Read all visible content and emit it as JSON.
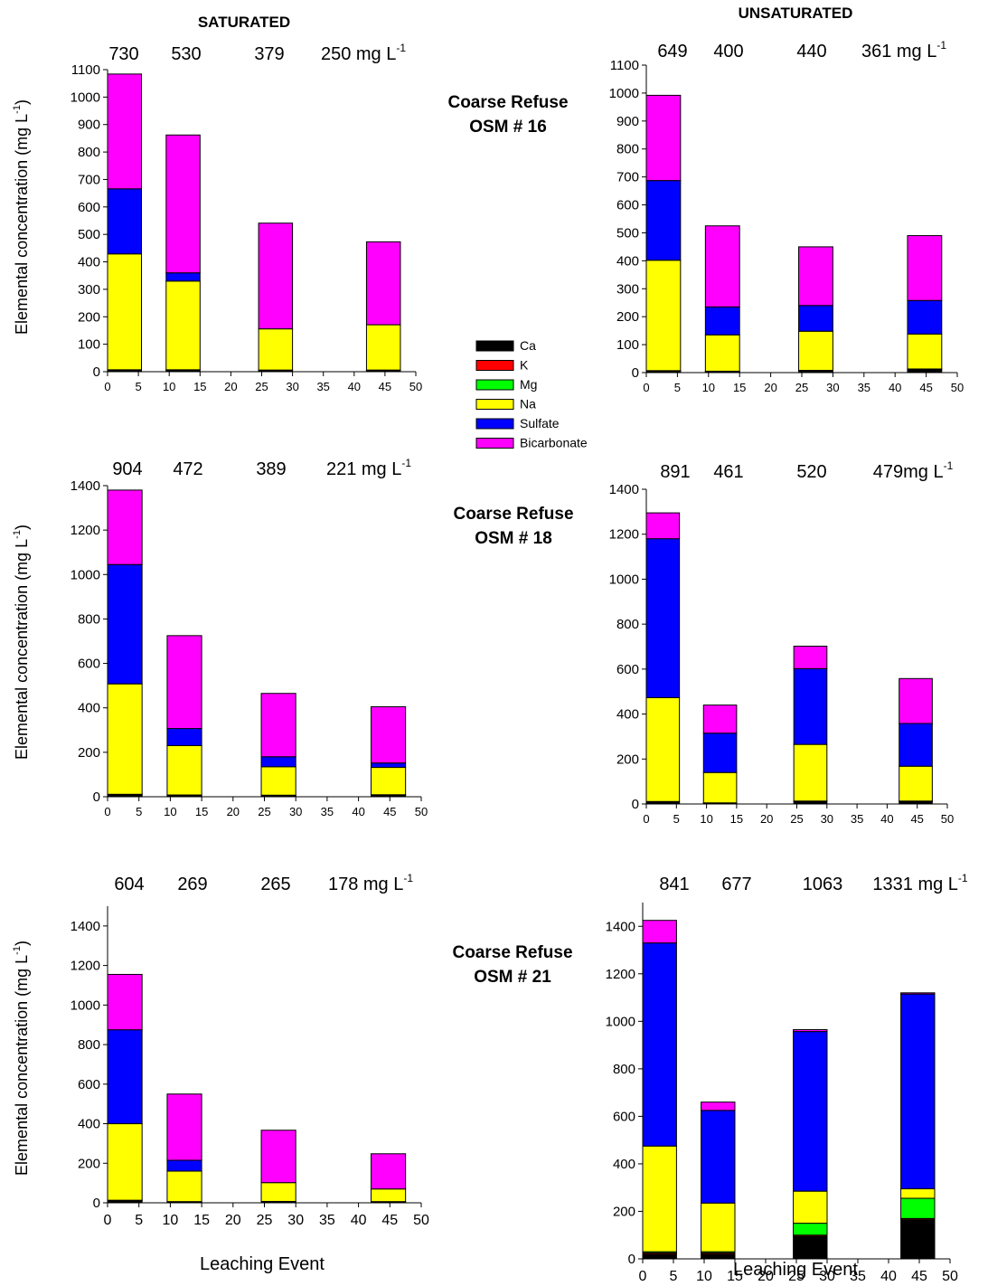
{
  "headers": {
    "saturated": "SATURATED",
    "unsaturated": "UNSATURATED"
  },
  "xlabel": "Leaching Event",
  "ylabel": "Elemental concentration (mg L",
  "ylabel_sup": "-1",
  "ylabel_close": ")",
  "row_labels": [
    {
      "line1": "Coarse Refuse",
      "line2": "OSM # 16"
    },
    {
      "line1": "Coarse Refuse",
      "line2": "OSM # 18"
    },
    {
      "line1": "Coarse Refuse",
      "line2": "OSM # 21"
    }
  ],
  "legend": [
    {
      "key": "Ca",
      "label": "Ca",
      "color": "#000000"
    },
    {
      "key": "K",
      "label": "K",
      "color": "#ff0000"
    },
    {
      "key": "Mg",
      "label": "Mg",
      "color": "#00ff00"
    },
    {
      "key": "Na",
      "label": "Na",
      "color": "#ffff00"
    },
    {
      "key": "Sulfate",
      "label": "Sulfate",
      "color": "#0000ff"
    },
    {
      "key": "Bicarbonate",
      "label": "Bicarbonate",
      "color": "#ff00ff"
    }
  ],
  "chart_data": [
    {
      "type": "bar",
      "stacked": true,
      "panel": "OSM # 16 saturated",
      "ylim": [
        0,
        1100
      ],
      "yticks": [
        0,
        100,
        200,
        300,
        400,
        500,
        600,
        700,
        800,
        900,
        1000,
        1100
      ],
      "xlim": [
        0,
        50
      ],
      "xticks": [
        0,
        5,
        10,
        15,
        20,
        25,
        30,
        35,
        40,
        45,
        50
      ],
      "top_labels": [
        "730",
        "530",
        "379",
        "250 mg L"
      ],
      "top_label_sup": "-1",
      "bars": [
        {
          "x": [
            0,
            5.5
          ],
          "Ca": 5,
          "K": 2,
          "Mg": 0,
          "Na": 422,
          "Sulfate": 237,
          "Bicarbonate": 418
        },
        {
          "x": [
            9.5,
            15
          ],
          "Ca": 5,
          "K": 2,
          "Mg": 0,
          "Na": 323,
          "Sulfate": 30,
          "Bicarbonate": 502
        },
        {
          "x": [
            24.5,
            30
          ],
          "Ca": 4,
          "K": 2,
          "Mg": 0,
          "Na": 150,
          "Sulfate": 0,
          "Bicarbonate": 385
        },
        {
          "x": [
            42,
            47.5
          ],
          "Ca": 4,
          "K": 2,
          "Mg": 0,
          "Na": 165,
          "Sulfate": 0,
          "Bicarbonate": 302
        }
      ]
    },
    {
      "type": "bar",
      "stacked": true,
      "panel": "OSM # 16 unsaturated",
      "ylim": [
        0,
        1100
      ],
      "yticks": [
        0,
        100,
        200,
        300,
        400,
        500,
        600,
        700,
        800,
        900,
        1000,
        1100
      ],
      "xlim": [
        0,
        50
      ],
      "xticks": [
        0,
        5,
        10,
        15,
        20,
        25,
        30,
        35,
        40,
        45,
        50
      ],
      "top_labels": [
        "649",
        "400",
        "440",
        "361 mg L"
      ],
      "top_label_sup": "-1",
      "bars": [
        {
          "x": [
            0,
            5.5
          ],
          "Ca": 5,
          "K": 2,
          "Mg": 0,
          "Na": 395,
          "Sulfate": 285,
          "Bicarbonate": 305
        },
        {
          "x": [
            9.5,
            15
          ],
          "Ca": 3,
          "K": 2,
          "Mg": 0,
          "Na": 130,
          "Sulfate": 100,
          "Bicarbonate": 290
        },
        {
          "x": [
            24.5,
            30
          ],
          "Ca": 6,
          "K": 2,
          "Mg": 0,
          "Na": 140,
          "Sulfate": 92,
          "Bicarbonate": 210
        },
        {
          "x": [
            42,
            47.5
          ],
          "Ca": 10,
          "K": 3,
          "Mg": 0,
          "Na": 125,
          "Sulfate": 120,
          "Bicarbonate": 232
        }
      ]
    },
    {
      "type": "bar",
      "stacked": true,
      "panel": "OSM # 18 saturated",
      "ylim": [
        0,
        1400
      ],
      "yticks": [
        0,
        200,
        400,
        600,
        800,
        1000,
        1200,
        1400
      ],
      "xlim": [
        0,
        50
      ],
      "xticks": [
        0,
        5,
        10,
        15,
        20,
        25,
        30,
        35,
        40,
        45,
        50
      ],
      "top_labels": [
        "904",
        "472",
        "389",
        "221 mg L"
      ],
      "top_label_sup": "-1",
      "bars": [
        {
          "x": [
            0,
            5.5
          ],
          "Ca": 8,
          "K": 3,
          "Mg": 0,
          "Na": 497,
          "Sulfate": 537,
          "Bicarbonate": 335
        },
        {
          "x": [
            9.5,
            15
          ],
          "Ca": 6,
          "K": 2,
          "Mg": 0,
          "Na": 222,
          "Sulfate": 77,
          "Bicarbonate": 418
        },
        {
          "x": [
            24.5,
            30
          ],
          "Ca": 5,
          "K": 2,
          "Mg": 0,
          "Na": 128,
          "Sulfate": 45,
          "Bicarbonate": 285
        },
        {
          "x": [
            42,
            47.5
          ],
          "Ca": 6,
          "K": 3,
          "Mg": 0,
          "Na": 123,
          "Sulfate": 20,
          "Bicarbonate": 253
        }
      ]
    },
    {
      "type": "bar",
      "stacked": true,
      "panel": "OSM # 18 unsaturated",
      "ylim": [
        0,
        1400
      ],
      "yticks": [
        0,
        200,
        400,
        600,
        800,
        1000,
        1200,
        1400
      ],
      "xlim": [
        0,
        50
      ],
      "xticks": [
        0,
        5,
        10,
        15,
        20,
        25,
        30,
        35,
        40,
        45,
        50
      ],
      "top_labels": [
        "891",
        "461",
        "520",
        "479mg L"
      ],
      "top_label_sup": "-1",
      "bars": [
        {
          "x": [
            0,
            5.5
          ],
          "Ca": 8,
          "K": 3,
          "Mg": 0,
          "Na": 462,
          "Sulfate": 707,
          "Bicarbonate": 115
        },
        {
          "x": [
            9.5,
            15
          ],
          "Ca": 3,
          "K": 2,
          "Mg": 0,
          "Na": 135,
          "Sulfate": 175,
          "Bicarbonate": 125
        },
        {
          "x": [
            24.5,
            30
          ],
          "Ca": 10,
          "K": 3,
          "Mg": 0,
          "Na": 252,
          "Sulfate": 337,
          "Bicarbonate": 100
        },
        {
          "x": [
            42,
            47.5
          ],
          "Ca": 10,
          "K": 3,
          "Mg": 0,
          "Na": 155,
          "Sulfate": 190,
          "Bicarbonate": 200
        }
      ]
    },
    {
      "type": "bar",
      "stacked": true,
      "panel": "OSM # 21 saturated",
      "ylim": [
        0,
        1500
      ],
      "yticks": [
        0,
        200,
        400,
        600,
        800,
        1000,
        1200,
        1400
      ],
      "xlim": [
        0,
        50
      ],
      "xticks": [
        0,
        5,
        10,
        15,
        20,
        25,
        30,
        35,
        40,
        45,
        50
      ],
      "top_labels": [
        "604",
        "269",
        "265",
        "178 mg L"
      ],
      "top_label_sup": "-1",
      "bars": [
        {
          "x": [
            0,
            5.5
          ],
          "Ca": 10,
          "K": 3,
          "Mg": 0,
          "Na": 387,
          "Sulfate": 475,
          "Bicarbonate": 280
        },
        {
          "x": [
            9.5,
            15
          ],
          "Ca": 4,
          "K": 2,
          "Mg": 0,
          "Na": 154,
          "Sulfate": 55,
          "Bicarbonate": 335
        },
        {
          "x": [
            24.5,
            30
          ],
          "Ca": 5,
          "K": 2,
          "Mg": 0,
          "Na": 95,
          "Sulfate": 0,
          "Bicarbonate": 265
        },
        {
          "x": [
            42,
            47.5
          ],
          "Ca": 4,
          "K": 2,
          "Mg": 0,
          "Na": 64,
          "Sulfate": 0,
          "Bicarbonate": 178
        }
      ]
    },
    {
      "type": "bar",
      "stacked": true,
      "panel": "OSM # 21 unsaturated",
      "ylim": [
        0,
        1500
      ],
      "yticks": [
        0,
        200,
        400,
        600,
        800,
        1000,
        1200,
        1400
      ],
      "xlim": [
        0,
        50
      ],
      "xticks": [
        0,
        5,
        10,
        15,
        20,
        25,
        30,
        35,
        40,
        45,
        50
      ],
      "top_labels": [
        "841",
        "677",
        "1063",
        "1331 mg L"
      ],
      "top_label_sup": "-1",
      "bars": [
        {
          "x": [
            0,
            5.5
          ],
          "Ca": 20,
          "K": 5,
          "Mg": 5,
          "Na": 445,
          "Sulfate": 855,
          "Bicarbonate": 95
        },
        {
          "x": [
            9.5,
            15
          ],
          "Ca": 20,
          "K": 5,
          "Mg": 5,
          "Na": 205,
          "Sulfate": 390,
          "Bicarbonate": 35
        },
        {
          "x": [
            24.5,
            30
          ],
          "Ca": 95,
          "K": 5,
          "Mg": 50,
          "Na": 135,
          "Sulfate": 672,
          "Bicarbonate": 8
        },
        {
          "x": [
            42,
            47.5
          ],
          "Ca": 165,
          "K": 5,
          "Mg": 85,
          "Na": 40,
          "Sulfate": 820,
          "Bicarbonate": 5
        }
      ]
    }
  ]
}
